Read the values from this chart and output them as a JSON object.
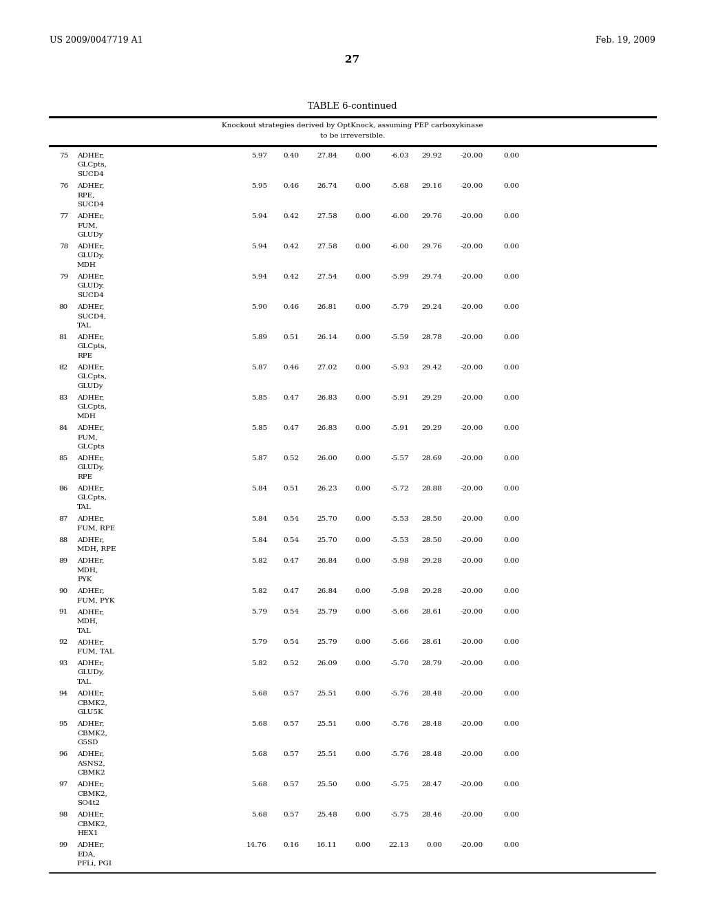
{
  "title": "TABLE 6-continued",
  "subtitle_line1": "Knockout strategies derived by OptKnock, assuming PEP carboxykinase",
  "subtitle_line2": "to be irreversible.",
  "header_left": "US 2009/0047719 A1",
  "header_right": "Feb. 19, 2009",
  "page_number": "27",
  "rows": [
    {
      "num": "75",
      "ko1": "ADHEr,",
      "ko2": "GLCpts,",
      "ko3": "SUCD4",
      "v1": "5.97",
      "v2": "0.40",
      "v3": "27.84",
      "v4": "0.00",
      "v5": "-6.03",
      "v6": "29.92",
      "v7": "-20.00",
      "v8": "0.00",
      "nlines": 3
    },
    {
      "num": "76",
      "ko1": "ADHEr,",
      "ko2": "RPE,",
      "ko3": "SUCD4",
      "v1": "5.95",
      "v2": "0.46",
      "v3": "26.74",
      "v4": "0.00",
      "v5": "-5.68",
      "v6": "29.16",
      "v7": "-20.00",
      "v8": "0.00",
      "nlines": 3
    },
    {
      "num": "77",
      "ko1": "ADHEr,",
      "ko2": "FUM,",
      "ko3": "GLUDy",
      "v1": "5.94",
      "v2": "0.42",
      "v3": "27.58",
      "v4": "0.00",
      "v5": "-6.00",
      "v6": "29.76",
      "v7": "-20.00",
      "v8": "0.00",
      "nlines": 3
    },
    {
      "num": "78",
      "ko1": "ADHEr,",
      "ko2": "GLUDy,",
      "ko3": "MDH",
      "v1": "5.94",
      "v2": "0.42",
      "v3": "27.58",
      "v4": "0.00",
      "v5": "-6.00",
      "v6": "29.76",
      "v7": "-20.00",
      "v8": "0.00",
      "nlines": 3
    },
    {
      "num": "79",
      "ko1": "ADHEr,",
      "ko2": "GLUDy,",
      "ko3": "SUCD4",
      "v1": "5.94",
      "v2": "0.42",
      "v3": "27.54",
      "v4": "0.00",
      "v5": "-5.99",
      "v6": "29.74",
      "v7": "-20.00",
      "v8": "0.00",
      "nlines": 3
    },
    {
      "num": "80",
      "ko1": "ADHEr,",
      "ko2": "SUCD4,",
      "ko3": "TAL",
      "v1": "5.90",
      "v2": "0.46",
      "v3": "26.81",
      "v4": "0.00",
      "v5": "-5.79",
      "v6": "29.24",
      "v7": "-20.00",
      "v8": "0.00",
      "nlines": 3
    },
    {
      "num": "81",
      "ko1": "ADHEr,",
      "ko2": "GLCpts,",
      "ko3": "RPE",
      "v1": "5.89",
      "v2": "0.51",
      "v3": "26.14",
      "v4": "0.00",
      "v5": "-5.59",
      "v6": "28.78",
      "v7": "-20.00",
      "v8": "0.00",
      "nlines": 3
    },
    {
      "num": "82",
      "ko1": "ADHEr,",
      "ko2": "GLCpts,",
      "ko3": "GLUDy",
      "v1": "5.87",
      "v2": "0.46",
      "v3": "27.02",
      "v4": "0.00",
      "v5": "-5.93",
      "v6": "29.42",
      "v7": "-20.00",
      "v8": "0.00",
      "nlines": 3
    },
    {
      "num": "83",
      "ko1": "ADHEr,",
      "ko2": "GLCpts,",
      "ko3": "MDH",
      "v1": "5.85",
      "v2": "0.47",
      "v3": "26.83",
      "v4": "0.00",
      "v5": "-5.91",
      "v6": "29.29",
      "v7": "-20.00",
      "v8": "0.00",
      "nlines": 3
    },
    {
      "num": "84",
      "ko1": "ADHEr,",
      "ko2": "FUM,",
      "ko3": "GLCpts",
      "v1": "5.85",
      "v2": "0.47",
      "v3": "26.83",
      "v4": "0.00",
      "v5": "-5.91",
      "v6": "29.29",
      "v7": "-20.00",
      "v8": "0.00",
      "nlines": 3
    },
    {
      "num": "85",
      "ko1": "ADHEr,",
      "ko2": "GLUDy,",
      "ko3": "RPE",
      "v1": "5.87",
      "v2": "0.52",
      "v3": "26.00",
      "v4": "0.00",
      "v5": "-5.57",
      "v6": "28.69",
      "v7": "-20.00",
      "v8": "0.00",
      "nlines": 3
    },
    {
      "num": "86",
      "ko1": "ADHEr,",
      "ko2": "GLCpts,",
      "ko3": "TAL",
      "v1": "5.84",
      "v2": "0.51",
      "v3": "26.23",
      "v4": "0.00",
      "v5": "-5.72",
      "v6": "28.88",
      "v7": "-20.00",
      "v8": "0.00",
      "nlines": 3
    },
    {
      "num": "87",
      "ko1": "ADHEr,",
      "ko2": "FUM, RPE",
      "ko3": "",
      "v1": "5.84",
      "v2": "0.54",
      "v3": "25.70",
      "v4": "0.00",
      "v5": "-5.53",
      "v6": "28.50",
      "v7": "-20.00",
      "v8": "0.00",
      "nlines": 2
    },
    {
      "num": "88",
      "ko1": "ADHEr,",
      "ko2": "MDH, RPE",
      "ko3": "",
      "v1": "5.84",
      "v2": "0.54",
      "v3": "25.70",
      "v4": "0.00",
      "v5": "-5.53",
      "v6": "28.50",
      "v7": "-20.00",
      "v8": "0.00",
      "nlines": 2
    },
    {
      "num": "89",
      "ko1": "ADHEr,",
      "ko2": "MDH,",
      "ko3": "PYK",
      "v1": "5.82",
      "v2": "0.47",
      "v3": "26.84",
      "v4": "0.00",
      "v5": "-5.98",
      "v6": "29.28",
      "v7": "-20.00",
      "v8": "0.00",
      "nlines": 3
    },
    {
      "num": "90",
      "ko1": "ADHEr,",
      "ko2": "FUM, PYK",
      "ko3": "",
      "v1": "5.82",
      "v2": "0.47",
      "v3": "26.84",
      "v4": "0.00",
      "v5": "-5.98",
      "v6": "29.28",
      "v7": "-20.00",
      "v8": "0.00",
      "nlines": 2
    },
    {
      "num": "91",
      "ko1": "ADHEr,",
      "ko2": "MDH,",
      "ko3": "TAL",
      "v1": "5.79",
      "v2": "0.54",
      "v3": "25.79",
      "v4": "0.00",
      "v5": "-5.66",
      "v6": "28.61",
      "v7": "-20.00",
      "v8": "0.00",
      "nlines": 3
    },
    {
      "num": "92",
      "ko1": "ADHEr,",
      "ko2": "FUM, TAL",
      "ko3": "",
      "v1": "5.79",
      "v2": "0.54",
      "v3": "25.79",
      "v4": "0.00",
      "v5": "-5.66",
      "v6": "28.61",
      "v7": "-20.00",
      "v8": "0.00",
      "nlines": 2
    },
    {
      "num": "93",
      "ko1": "ADHEr,",
      "ko2": "GLUDy,",
      "ko3": "TAL",
      "v1": "5.82",
      "v2": "0.52",
      "v3": "26.09",
      "v4": "0.00",
      "v5": "-5.70",
      "v6": "28.79",
      "v7": "-20.00",
      "v8": "0.00",
      "nlines": 3
    },
    {
      "num": "94",
      "ko1": "ADHEr,",
      "ko2": "CBMK2,",
      "ko3": "GLU5K",
      "v1": "5.68",
      "v2": "0.57",
      "v3": "25.51",
      "v4": "0.00",
      "v5": "-5.76",
      "v6": "28.48",
      "v7": "-20.00",
      "v8": "0.00",
      "nlines": 3
    },
    {
      "num": "95",
      "ko1": "ADHEr,",
      "ko2": "CBMK2,",
      "ko3": "G5SD",
      "v1": "5.68",
      "v2": "0.57",
      "v3": "25.51",
      "v4": "0.00",
      "v5": "-5.76",
      "v6": "28.48",
      "v7": "-20.00",
      "v8": "0.00",
      "nlines": 3
    },
    {
      "num": "96",
      "ko1": "ADHEr,",
      "ko2": "ASNS2,",
      "ko3": "CBMK2",
      "v1": "5.68",
      "v2": "0.57",
      "v3": "25.51",
      "v4": "0.00",
      "v5": "-5.76",
      "v6": "28.48",
      "v7": "-20.00",
      "v8": "0.00",
      "nlines": 3
    },
    {
      "num": "97",
      "ko1": "ADHEr,",
      "ko2": "CBMK2,",
      "ko3": "SO4t2",
      "v1": "5.68",
      "v2": "0.57",
      "v3": "25.50",
      "v4": "0.00",
      "v5": "-5.75",
      "v6": "28.47",
      "v7": "-20.00",
      "v8": "0.00",
      "nlines": 3
    },
    {
      "num": "98",
      "ko1": "ADHEr,",
      "ko2": "CBMK2,",
      "ko3": "HEX1",
      "v1": "5.68",
      "v2": "0.57",
      "v3": "25.48",
      "v4": "0.00",
      "v5": "-5.75",
      "v6": "28.46",
      "v7": "-20.00",
      "v8": "0.00",
      "nlines": 3
    },
    {
      "num": "99",
      "ko1": "ADHEr,",
      "ko2": "EDA,",
      "ko3": "PFLi, PGI",
      "v1": "14.76",
      "v2": "0.16",
      "v3": "16.11",
      "v4": "0.00",
      "v5": "22.13",
      "v6": "0.00",
      "v7": "-20.00",
      "v8": "0.00",
      "nlines": 3
    }
  ],
  "bg_color": "#ffffff",
  "text_color": "#000000",
  "font_size": 7.5,
  "header_font_size": 9.0,
  "title_font_size": 9.5,
  "page_num_font_size": 11.0
}
